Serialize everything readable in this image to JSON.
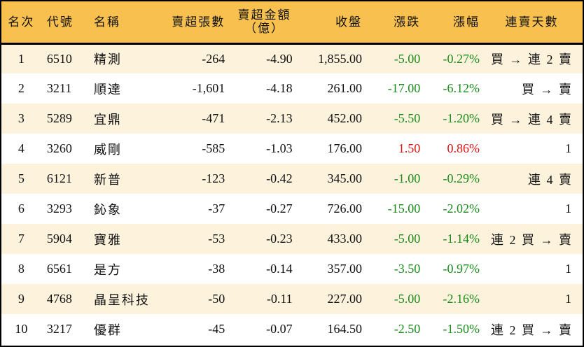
{
  "colors": {
    "header_bg": "#f8c04e",
    "row_odd_bg": "#fdf3dd",
    "row_even_bg": "#ffffff",
    "down": "#1a8a1a",
    "up": "#e01010",
    "border": "#000000"
  },
  "table": {
    "headers": {
      "rank": "名次",
      "code": "代號",
      "name": "名稱",
      "net_sell_lots": "賣超張數",
      "net_sell_amount_line1": "賣超金額",
      "net_sell_amount_line2": "（億）",
      "close": "收盤",
      "change": "漲跌",
      "change_pct": "漲幅",
      "streak": "連賣天數"
    },
    "rows": [
      {
        "rank": "1",
        "code": "6510",
        "name": "精測",
        "lots": "-264",
        "amount": "-4.90",
        "close": "1,855.00",
        "change": "-5.00",
        "pct": "-0.27%",
        "dir": "neg",
        "streak": "買 → 連 2 賣"
      },
      {
        "rank": "2",
        "code": "3211",
        "name": "順達",
        "lots": "-1,601",
        "amount": "-4.18",
        "close": "261.00",
        "change": "-17.00",
        "pct": "-6.12%",
        "dir": "neg",
        "streak": "買 → 賣"
      },
      {
        "rank": "3",
        "code": "5289",
        "name": "宜鼎",
        "lots": "-471",
        "amount": "-2.13",
        "close": "452.00",
        "change": "-5.50",
        "pct": "-1.20%",
        "dir": "neg",
        "streak": "買 → 連 4 賣"
      },
      {
        "rank": "4",
        "code": "3260",
        "name": "威剛",
        "lots": "-585",
        "amount": "-1.03",
        "close": "176.00",
        "change": "1.50",
        "pct": "0.86%",
        "dir": "pos",
        "streak": "1"
      },
      {
        "rank": "5",
        "code": "6121",
        "name": "新普",
        "lots": "-123",
        "amount": "-0.42",
        "close": "345.00",
        "change": "-1.00",
        "pct": "-0.29%",
        "dir": "neg",
        "streak": "連 4 賣"
      },
      {
        "rank": "6",
        "code": "3293",
        "name": "鈊象",
        "lots": "-37",
        "amount": "-0.27",
        "close": "726.00",
        "change": "-15.00",
        "pct": "-2.02%",
        "dir": "neg",
        "streak": "1"
      },
      {
        "rank": "7",
        "code": "5904",
        "name": "寶雅",
        "lots": "-53",
        "amount": "-0.23",
        "close": "433.00",
        "change": "-5.00",
        "pct": "-1.14%",
        "dir": "neg",
        "streak": "連 2 買 → 賣"
      },
      {
        "rank": "8",
        "code": "6561",
        "name": "是方",
        "lots": "-38",
        "amount": "-0.14",
        "close": "357.00",
        "change": "-3.50",
        "pct": "-0.97%",
        "dir": "neg",
        "streak": "1"
      },
      {
        "rank": "9",
        "code": "4768",
        "name": "晶呈科技",
        "lots": "-50",
        "amount": "-0.11",
        "close": "227.00",
        "change": "-5.00",
        "pct": "-2.16%",
        "dir": "neg",
        "streak": "1"
      },
      {
        "rank": "10",
        "code": "3217",
        "name": "優群",
        "lots": "-45",
        "amount": "-0.07",
        "close": "164.50",
        "change": "-2.50",
        "pct": "-1.50%",
        "dir": "neg",
        "streak": "連 2 買 → 賣"
      }
    ]
  }
}
